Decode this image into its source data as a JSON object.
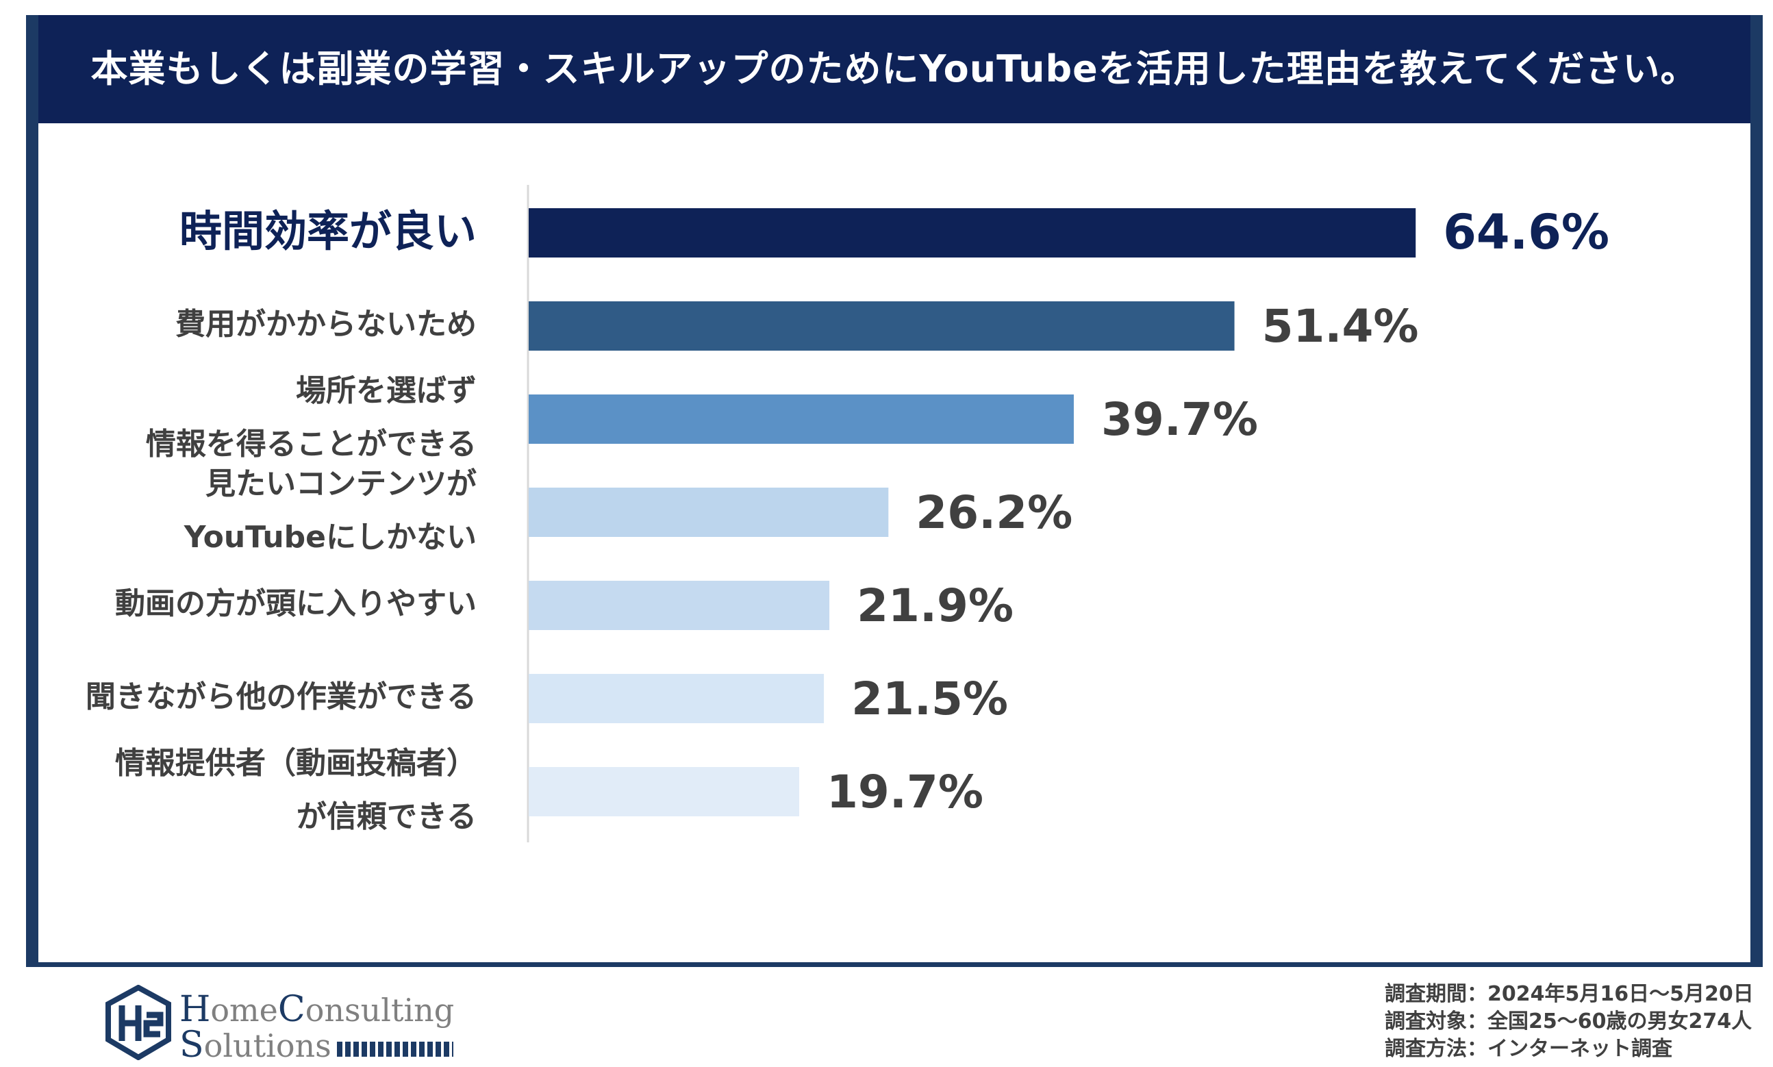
{
  "header": {
    "title": "本業もしくは副業の学習・スキルアップのためにYouTubeを活用した理由を教えてください。"
  },
  "colors": {
    "frame": "#1c3a64",
    "header_bg": "#0e2257",
    "bars": [
      "#0e2257",
      "#305b86",
      "#5b91c6",
      "#bcd5ed",
      "#c5daf0",
      "#d6e6f6",
      "#e1ecf8"
    ]
  },
  "chart_data": {
    "type": "bar",
    "orientation": "horizontal",
    "title": "本業もしくは副業の学習・スキルアップのためにYouTubeを活用した理由を教えてください。",
    "xlabel": "",
    "ylabel": "",
    "xlim": [
      0,
      100
    ],
    "categories": [
      [
        "時間効率が良い"
      ],
      [
        "費用がかからないため"
      ],
      [
        "場所を選ばず",
        "情報を得ることができる"
      ],
      [
        "見たいコンテンツが",
        "YouTubeにしかない"
      ],
      [
        "動画の方が頭に入りやすい"
      ],
      [
        "聞きながら他の作業ができる"
      ],
      [
        "情報提供者（動画投稿者）",
        "が信頼できる"
      ]
    ],
    "values": [
      64.6,
      51.4,
      39.7,
      26.2,
      21.9,
      21.5,
      19.7
    ],
    "value_labels": [
      "64.6%",
      "51.4%",
      "39.7%",
      "26.2%",
      "21.9%",
      "21.5%",
      "19.7%"
    ]
  },
  "footnote": {
    "period": "調査期間：2024年5月16日～5月20日",
    "target": "調査対象：全国25～60歳の男女274人",
    "method": "調査方法：インターネット調査"
  },
  "logo": {
    "line1_cap": "H",
    "line1_rest": "ome",
    "line1_cap2": "C",
    "line1_rest2": "onsulting",
    "line2_cap": "S",
    "line2_rest": "olutions"
  }
}
